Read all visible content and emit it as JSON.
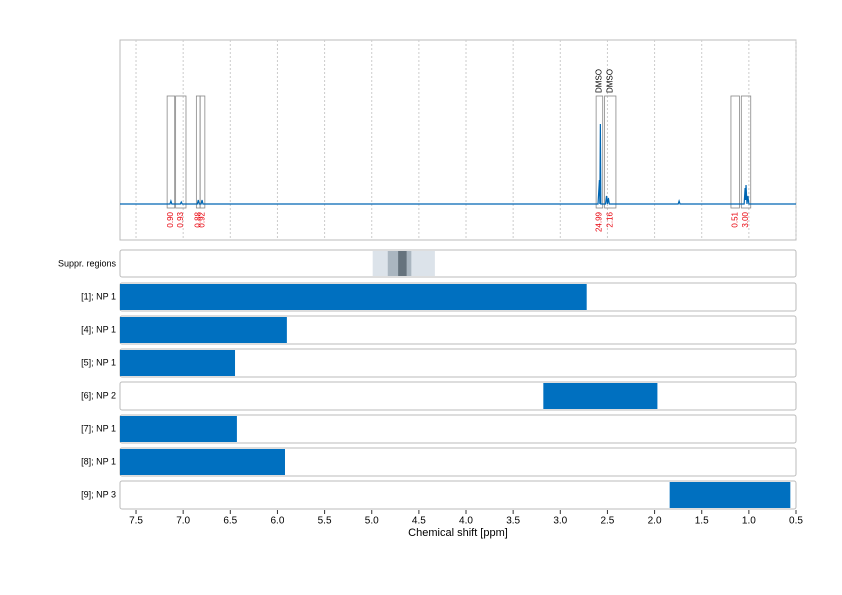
{
  "chart_data": {
    "type": "nmr",
    "x_label": "Chemical shift [ppm]",
    "xlim": [
      7.67,
      0.5
    ],
    "xticks": [
      7.5,
      {
        "value": 7,
        "label": "7.0"
      },
      6.5,
      {
        "value": 6,
        "label": "6.0"
      },
      5.5,
      {
        "value": 5,
        "label": "5.0"
      },
      4.5,
      {
        "value": 4,
        "label": "4.0"
      },
      3.5,
      {
        "value": 3,
        "label": "3.0"
      },
      2.5,
      {
        "value": 2,
        "label": "2.0"
      },
      1.5,
      {
        "value": 1,
        "label": "1.0"
      },
      0.5
    ],
    "grid": true,
    "ylim": [
      -18,
      82
    ],
    "spectrum": {
      "color": "#0066b3",
      "x": [
        7.67,
        7.14,
        7.13,
        7.12,
        7.03,
        7.02,
        7.01,
        6.85,
        6.84,
        6.83,
        6.81,
        6.8,
        6.79,
        2.6,
        2.585,
        2.58,
        2.575,
        2.57,
        2.52,
        2.51,
        2.5,
        2.49,
        2.48,
        1.75,
        1.74,
        1.73,
        1.05,
        1.04,
        1.035,
        1.03,
        1.02,
        1.01,
        1.0,
        0.5
      ],
      "y": [
        0,
        0,
        1.5,
        0,
        0,
        1,
        0,
        0,
        2,
        0,
        0,
        2,
        0,
        0,
        12,
        0,
        40,
        0,
        0,
        4,
        0,
        3,
        0,
        0,
        1.5,
        0,
        0,
        8,
        2,
        9.5,
        0,
        4,
        0,
        0
      ]
    },
    "integrals": {
      "color": "#e8000b",
      "ranges": [
        [
          7.17,
          7.09
        ],
        [
          7.08,
          6.97
        ],
        [
          6.86,
          6.82
        ],
        [
          6.82,
          6.77
        ],
        [
          2.62,
          2.55
        ],
        [
          2.53,
          2.41
        ],
        [
          1.19,
          1.1
        ],
        [
          1.08,
          0.98
        ]
      ],
      "values": [
        0.9,
        0.93,
        0.88,
        0.92,
        24.99,
        2.16,
        0.51,
        3
      ],
      "value_labels": [
        "0.90",
        "0.93",
        "0.88",
        "0.92",
        "24.99",
        "2.16",
        "0.51",
        "3.00"
      ]
    },
    "annotations": [
      {
        "text": "DMSO",
        "x": 2.585
      },
      {
        "text": "DMSO",
        "x": 2.47
      }
    ],
    "suppression": {
      "label": "Suppr. regions",
      "regions": [
        {
          "range": [
            4.99,
            4.33
          ],
          "color": "#dce3ea"
        },
        {
          "range": [
            4.83,
            4.58
          ],
          "color": "#aab6c0"
        },
        {
          "range": [
            4.72,
            4.63
          ],
          "color": "#66737d"
        }
      ]
    },
    "bar_color": "#0070c0",
    "series": [
      {
        "name": "[1]; NP 1",
        "range": [
          7.67,
          2.72
        ]
      },
      {
        "name": "[4]; NP 1",
        "range": [
          7.67,
          5.9
        ]
      },
      {
        "name": "[5]; NP 1",
        "range": [
          7.67,
          6.45
        ]
      },
      {
        "name": "[6]; NP 2",
        "range": [
          3.18,
          1.97
        ]
      },
      {
        "name": "[7]; NP 1",
        "range": [
          7.67,
          6.43
        ]
      },
      {
        "name": "[8]; NP 1",
        "range": [
          7.67,
          5.92
        ]
      },
      {
        "name": "[9]; NP 3",
        "range": [
          1.84,
          0.56
        ]
      }
    ]
  }
}
